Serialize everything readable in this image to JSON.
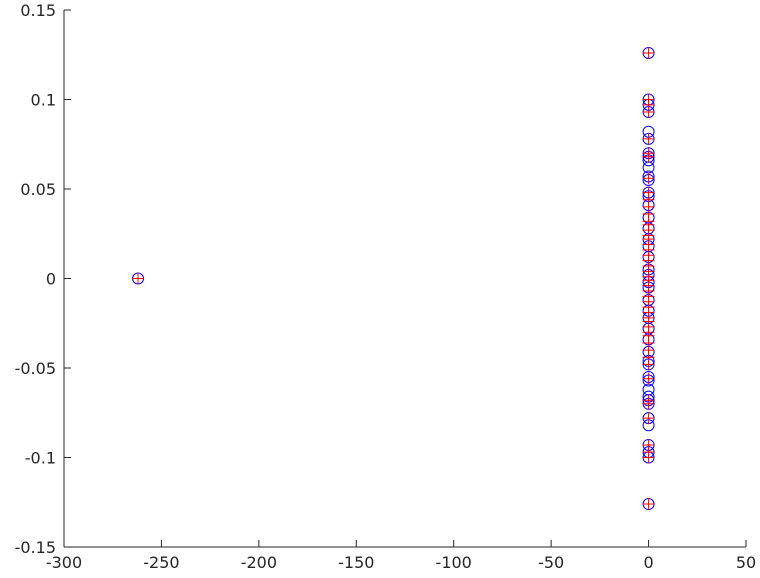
{
  "chart_data": {
    "type": "scatter",
    "title": "",
    "xlabel": "",
    "ylabel": "",
    "xlim": [
      -300,
      50
    ],
    "ylim": [
      -0.15,
      0.15
    ],
    "x_ticks": [
      -300,
      -250,
      -200,
      -150,
      -100,
      -50,
      0,
      50
    ],
    "x_tick_labels": [
      "-300",
      "-250",
      "-200",
      "-150",
      "-100",
      "-50",
      "0",
      "50"
    ],
    "y_ticks": [
      -0.15,
      -0.1,
      -0.05,
      0,
      0.05,
      0.1,
      0.15
    ],
    "y_tick_labels": [
      "-0.15",
      "-0.1",
      "-0.05",
      "0",
      "0.05",
      "0.1",
      "0.15"
    ],
    "grid": false,
    "legend": "none",
    "colors": {
      "circles": "#0000ff",
      "plus": "#ff0000",
      "axis": "#262626"
    },
    "series": [
      {
        "marker": "circle",
        "color": "#0000ff",
        "points": [
          [
            -262,
            0
          ],
          [
            0,
            0.126
          ],
          [
            0,
            0.1
          ],
          [
            0,
            0.097
          ],
          [
            0,
            0.093
          ],
          [
            0,
            0.082
          ],
          [
            0,
            0.078
          ],
          [
            0,
            0.07
          ],
          [
            0,
            0.068
          ],
          [
            0,
            0.066
          ],
          [
            0,
            0.062
          ],
          [
            0,
            0.057
          ],
          [
            0,
            0.055
          ],
          [
            0,
            0.048
          ],
          [
            0,
            0.046
          ],
          [
            0,
            0.041
          ],
          [
            0,
            0.034
          ],
          [
            0,
            0.028
          ],
          [
            0,
            0.022
          ],
          [
            0,
            0.018
          ],
          [
            0,
            0.012
          ],
          [
            0,
            0.005
          ],
          [
            0,
            0.002
          ],
          [
            0,
            -0.002
          ],
          [
            0,
            -0.005
          ],
          [
            0,
            -0.012
          ],
          [
            0,
            -0.018
          ],
          [
            0,
            -0.022
          ],
          [
            0,
            -0.028
          ],
          [
            0,
            -0.034
          ],
          [
            0,
            -0.041
          ],
          [
            0,
            -0.046
          ],
          [
            0,
            -0.048
          ],
          [
            0,
            -0.055
          ],
          [
            0,
            -0.057
          ],
          [
            0,
            -0.062
          ],
          [
            0,
            -0.066
          ],
          [
            0,
            -0.068
          ],
          [
            0,
            -0.07
          ],
          [
            0,
            -0.078
          ],
          [
            0,
            -0.082
          ],
          [
            0,
            -0.093
          ],
          [
            0,
            -0.097
          ],
          [
            0,
            -0.1
          ],
          [
            0,
            -0.126
          ]
        ]
      },
      {
        "marker": "plus",
        "color": "#ff0000",
        "points": [
          [
            -262,
            0
          ],
          [
            0,
            0.126
          ],
          [
            0,
            0.1
          ],
          [
            0,
            0.097
          ],
          [
            0,
            0.093
          ],
          [
            0,
            0.078
          ],
          [
            0,
            0.07
          ],
          [
            0,
            0.068
          ],
          [
            0,
            0.056
          ],
          [
            0,
            0.048
          ],
          [
            0,
            0.044
          ],
          [
            0,
            0.04
          ],
          [
            0,
            0.036
          ],
          [
            0,
            0.032
          ],
          [
            0,
            0.03
          ],
          [
            0,
            0.027
          ],
          [
            0,
            0.024
          ],
          [
            0,
            0.022
          ],
          [
            0,
            0.019
          ],
          [
            0,
            0.016
          ],
          [
            0,
            0.013
          ],
          [
            0,
            0.01
          ],
          [
            0,
            0.007
          ],
          [
            0,
            0.004
          ],
          [
            0,
            0.001
          ],
          [
            0,
            -0.001
          ],
          [
            0,
            -0.004
          ],
          [
            0,
            -0.007
          ],
          [
            0,
            -0.01
          ],
          [
            0,
            -0.013
          ],
          [
            0,
            -0.016
          ],
          [
            0,
            -0.019
          ],
          [
            0,
            -0.022
          ],
          [
            0,
            -0.024
          ],
          [
            0,
            -0.027
          ],
          [
            0,
            -0.03
          ],
          [
            0,
            -0.032
          ],
          [
            0,
            -0.036
          ],
          [
            0,
            -0.04
          ],
          [
            0,
            -0.044
          ],
          [
            0,
            -0.048
          ],
          [
            0,
            -0.056
          ],
          [
            0,
            -0.068
          ],
          [
            0,
            -0.07
          ],
          [
            0,
            -0.078
          ],
          [
            0,
            -0.093
          ],
          [
            0,
            -0.097
          ],
          [
            0,
            -0.1
          ],
          [
            0,
            -0.126
          ]
        ]
      }
    ]
  }
}
